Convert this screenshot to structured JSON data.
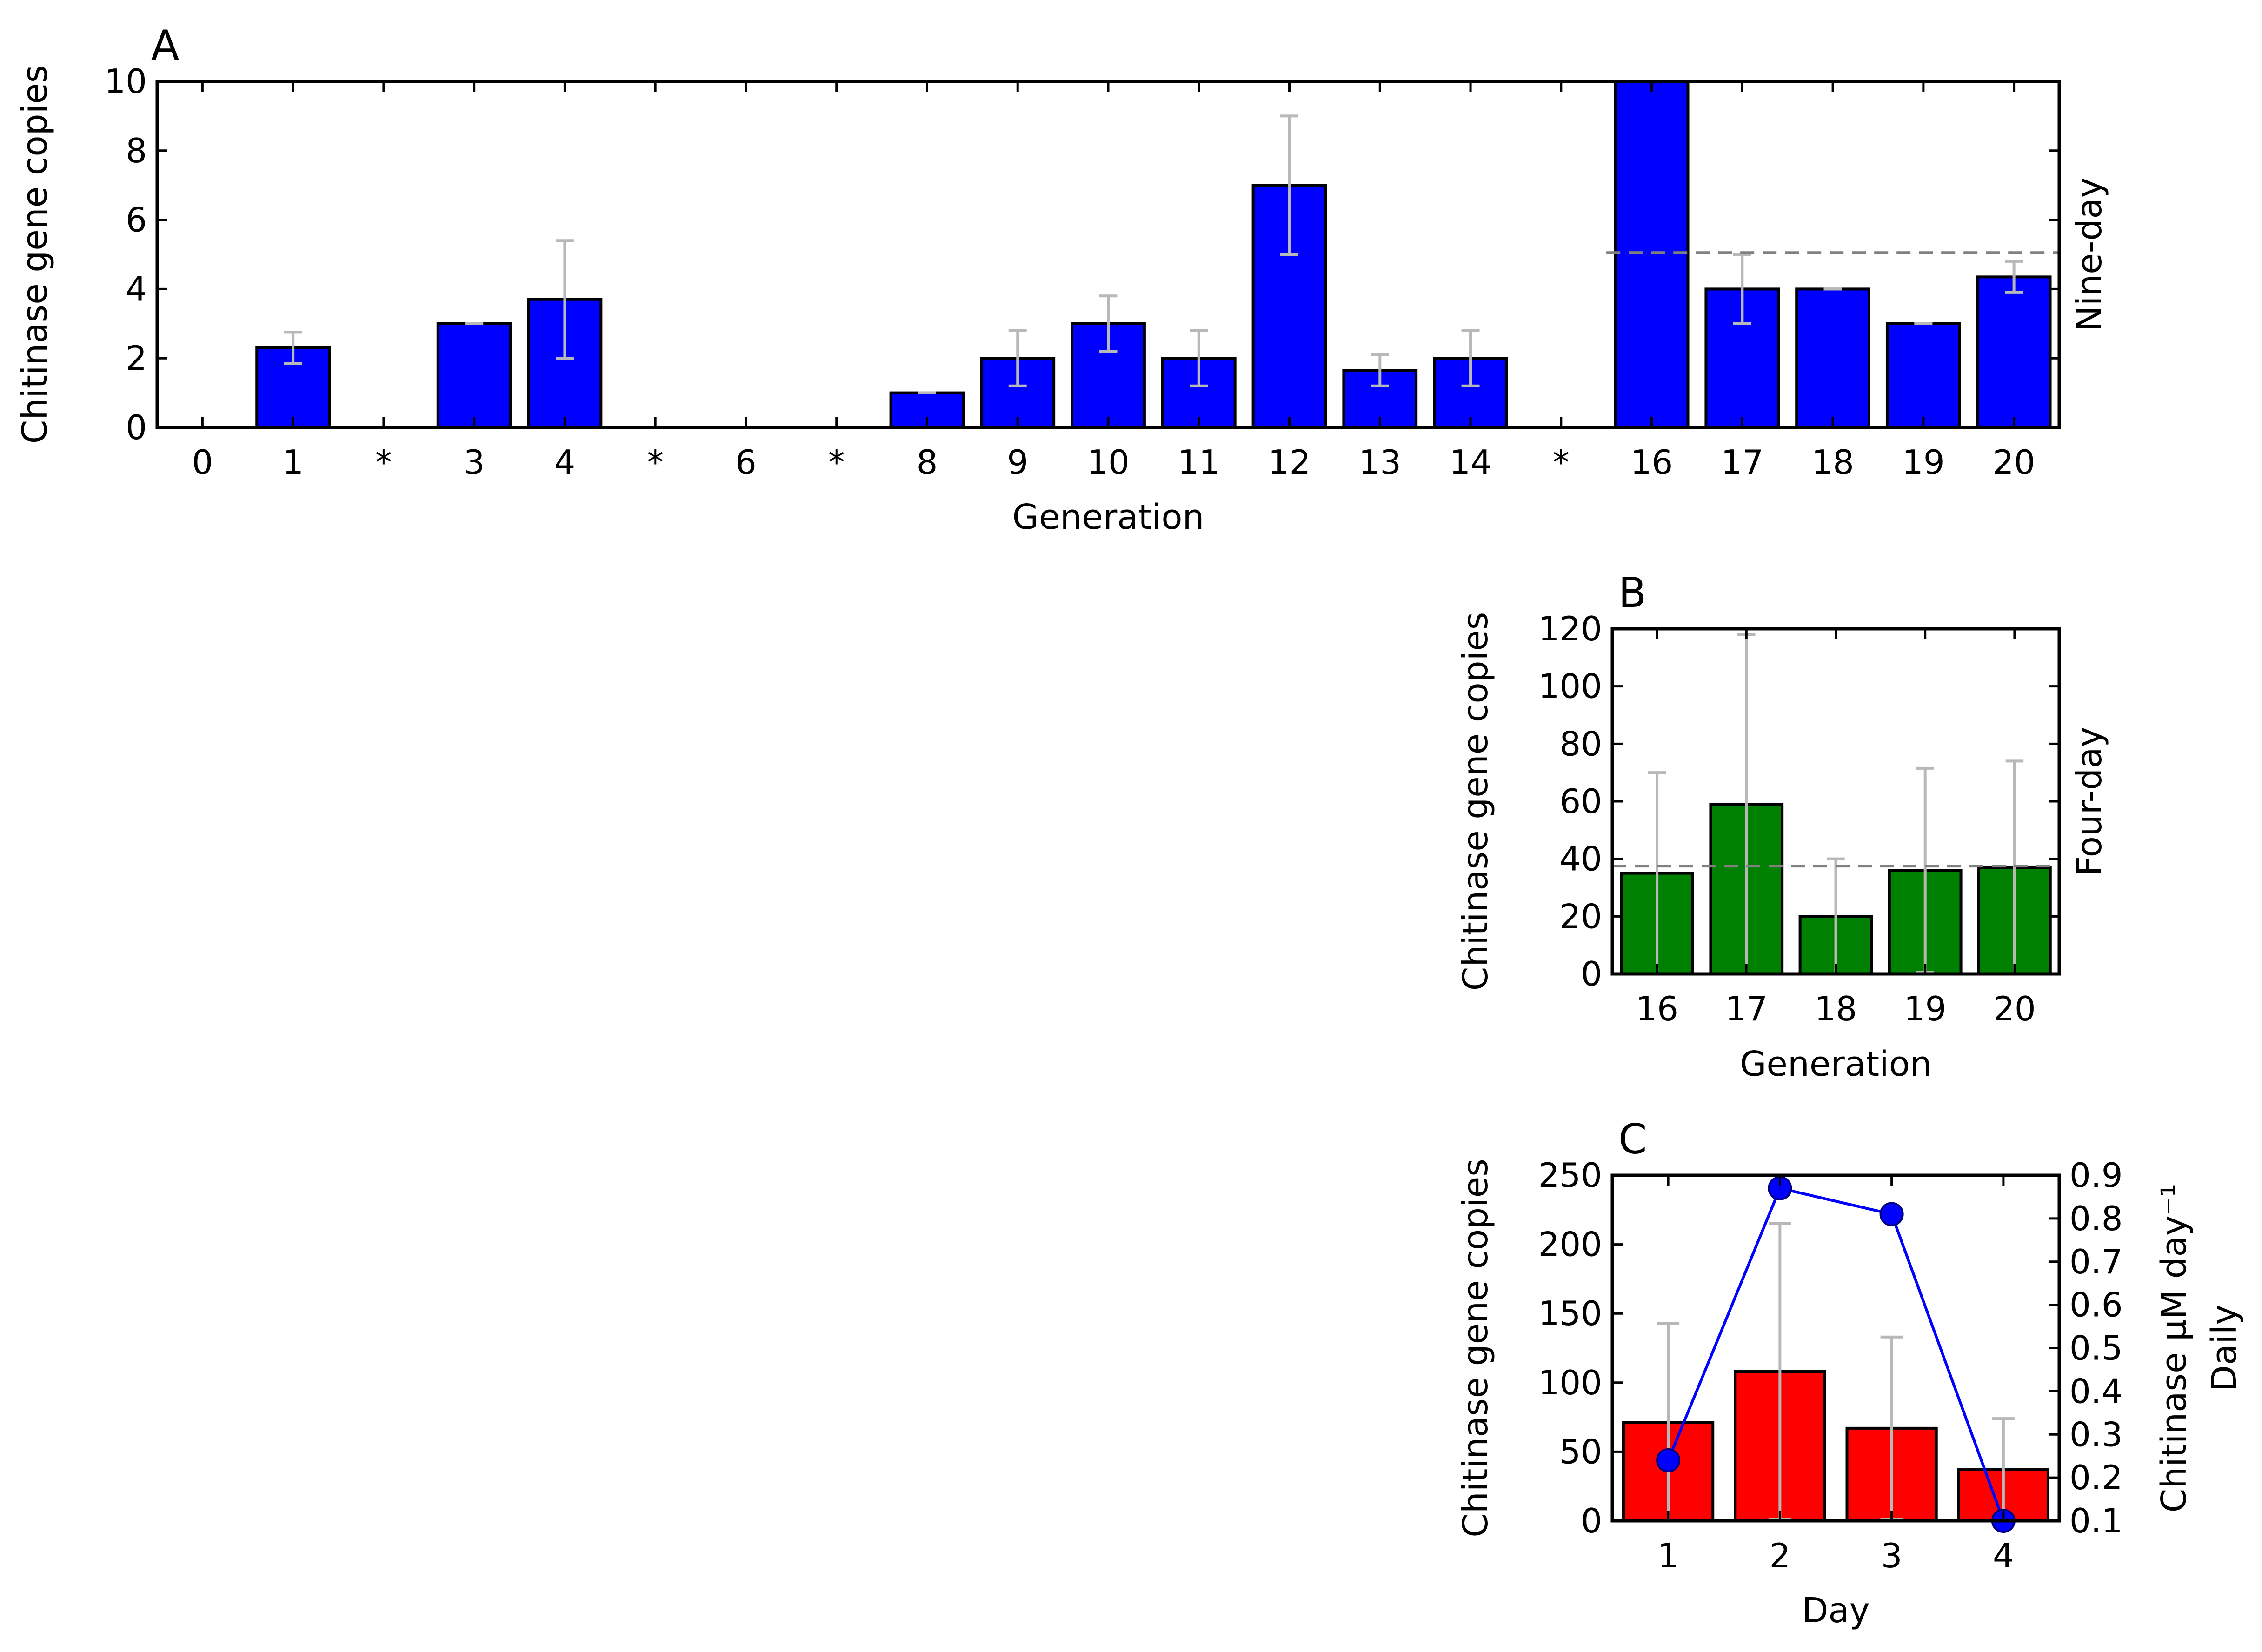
{
  "chart_data": [
    {
      "panel": "A",
      "type": "bar",
      "title": "",
      "xlabel": "Generation",
      "ylabel": "Chitinase gene copies",
      "right_label": "Nine-day",
      "categories": [
        "0",
        "1",
        "*",
        "3",
        "4",
        "*",
        "6",
        "*",
        "8",
        "9",
        "10",
        "11",
        "12",
        "13",
        "14",
        "*",
        "16",
        "17",
        "18",
        "19",
        "20"
      ],
      "values": [
        0,
        2.3,
        0,
        3.0,
        3.7,
        0,
        0,
        0,
        1.0,
        2.0,
        3.0,
        2.0,
        7.0,
        1.65,
        2.0,
        0,
        10.0,
        4.0,
        4.0,
        3.0,
        4.35
      ],
      "errors": [
        0,
        0.45,
        0,
        0,
        1.7,
        0,
        0,
        0,
        0,
        0.8,
        0.8,
        0.8,
        2.0,
        0.45,
        0.8,
        0,
        0,
        1.0,
        0,
        0,
        0.45
      ],
      "ylim": [
        0,
        10
      ],
      "yticks": [
        0,
        2,
        4,
        6,
        8,
        10
      ],
      "mean_line": {
        "value": 5.05,
        "from_index": 16,
        "to_index": 20
      },
      "bar_color": "#0000ff",
      "grid": false
    },
    {
      "panel": "B",
      "type": "bar",
      "title": "",
      "xlabel": "Generation",
      "ylabel": "Chitinase gene copies",
      "right_label": "Four-day",
      "categories": [
        "16",
        "17",
        "18",
        "19",
        "20"
      ],
      "values": [
        35,
        59,
        20,
        36,
        37
      ],
      "errors": [
        35,
        59,
        20,
        35.5,
        37
      ],
      "ylim": [
        0,
        120
      ],
      "yticks": [
        0,
        20,
        40,
        60,
        80,
        100,
        120
      ],
      "mean_line": {
        "value": 37.5,
        "from_index": 0,
        "to_index": 4
      },
      "bar_color": "#008000",
      "grid": false
    },
    {
      "panel": "C",
      "type": "bar+line",
      "title": "",
      "xlabel": "Day",
      "ylabel": "Chitinase gene copies",
      "y2label_line1": "Chitinase μM day⁻¹",
      "y2label_line2": "Daily",
      "categories": [
        "1",
        "2",
        "3",
        "4"
      ],
      "values": [
        71,
        108,
        67,
        37
      ],
      "errors": [
        72,
        107,
        66,
        37
      ],
      "ylim": [
        0,
        250
      ],
      "yticks": [
        0,
        50,
        100,
        150,
        200,
        250
      ],
      "bar_color": "#ff0000",
      "line_series": {
        "values": [
          0.24,
          0.87,
          0.81,
          0.1
        ],
        "color": "#0000ff"
      },
      "y2lim": [
        0.1,
        0.9
      ],
      "y2ticks": [
        "0.1",
        "0.2",
        "0.3",
        "0.4",
        "0.5",
        "0.6",
        "0.7",
        "0.8",
        "0.9"
      ],
      "grid": false
    }
  ]
}
